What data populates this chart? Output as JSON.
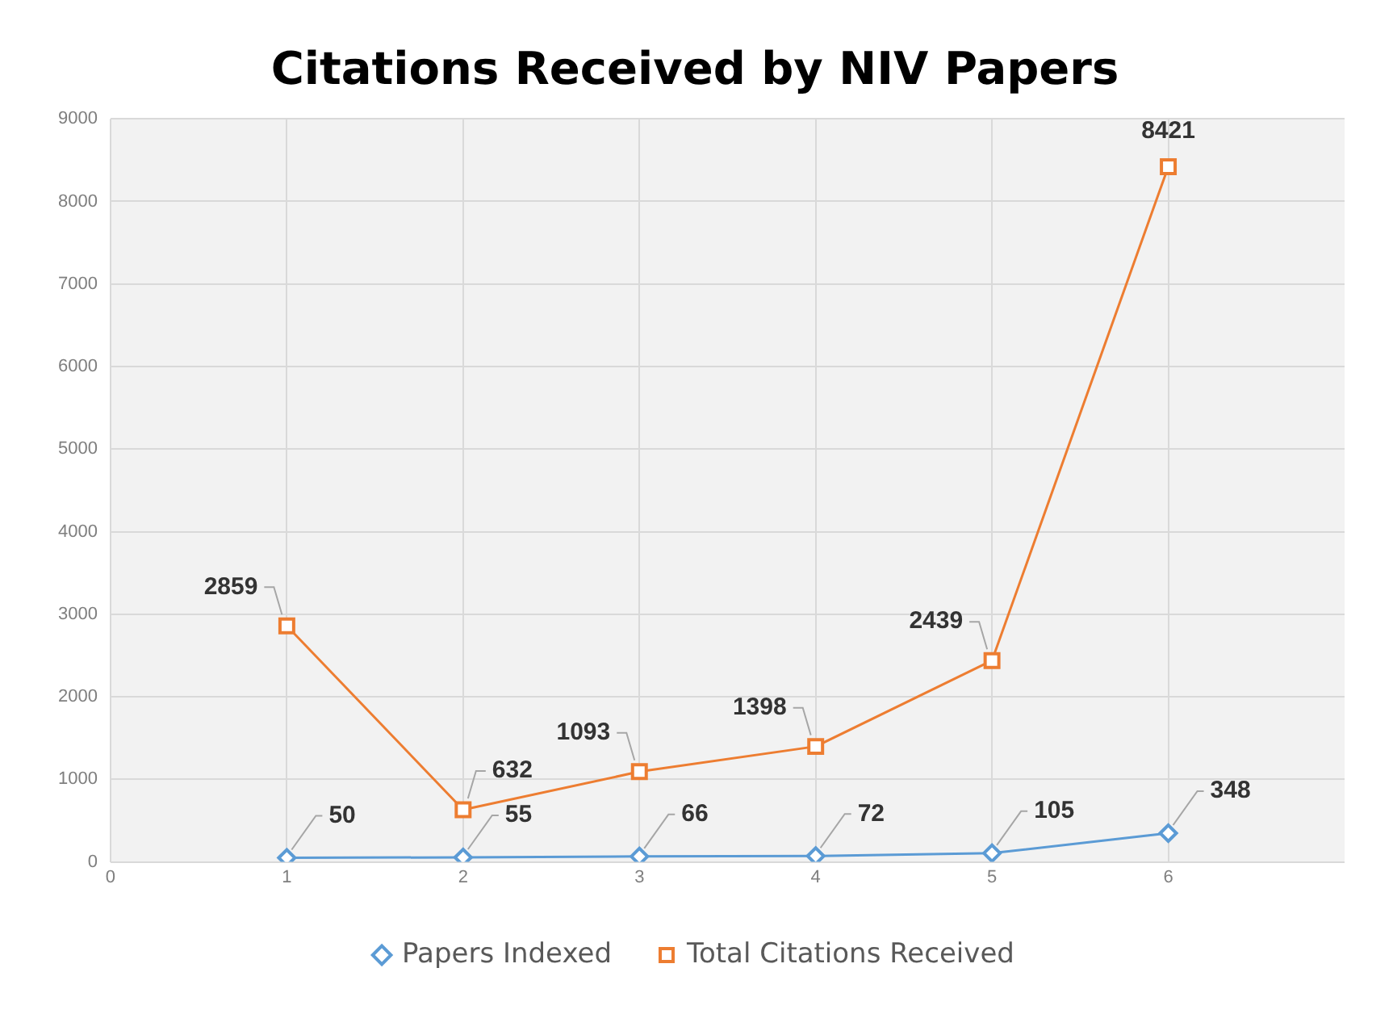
{
  "chart_data": {
    "type": "line",
    "title": "Citations Received by NIV Papers",
    "x": [
      1,
      2,
      3,
      4,
      5,
      6
    ],
    "xlim": [
      0,
      7
    ],
    "xticks": [
      0,
      1,
      2,
      3,
      4,
      5,
      6
    ],
    "ylim": [
      0,
      9000
    ],
    "yticks": [
      0,
      1000,
      2000,
      3000,
      4000,
      5000,
      6000,
      7000,
      8000,
      9000
    ],
    "grid": true,
    "legend": "bottom",
    "data_labels": true,
    "series": [
      {
        "name": "Papers Indexed",
        "color": "#5b9bd5",
        "marker": "diamond",
        "values": [
          50,
          55,
          66,
          72,
          105,
          348
        ]
      },
      {
        "name": "Total Citations Received",
        "color": "#ed7d31",
        "marker": "square",
        "values": [
          2859,
          632,
          1093,
          1398,
          2439,
          8421
        ]
      }
    ]
  }
}
